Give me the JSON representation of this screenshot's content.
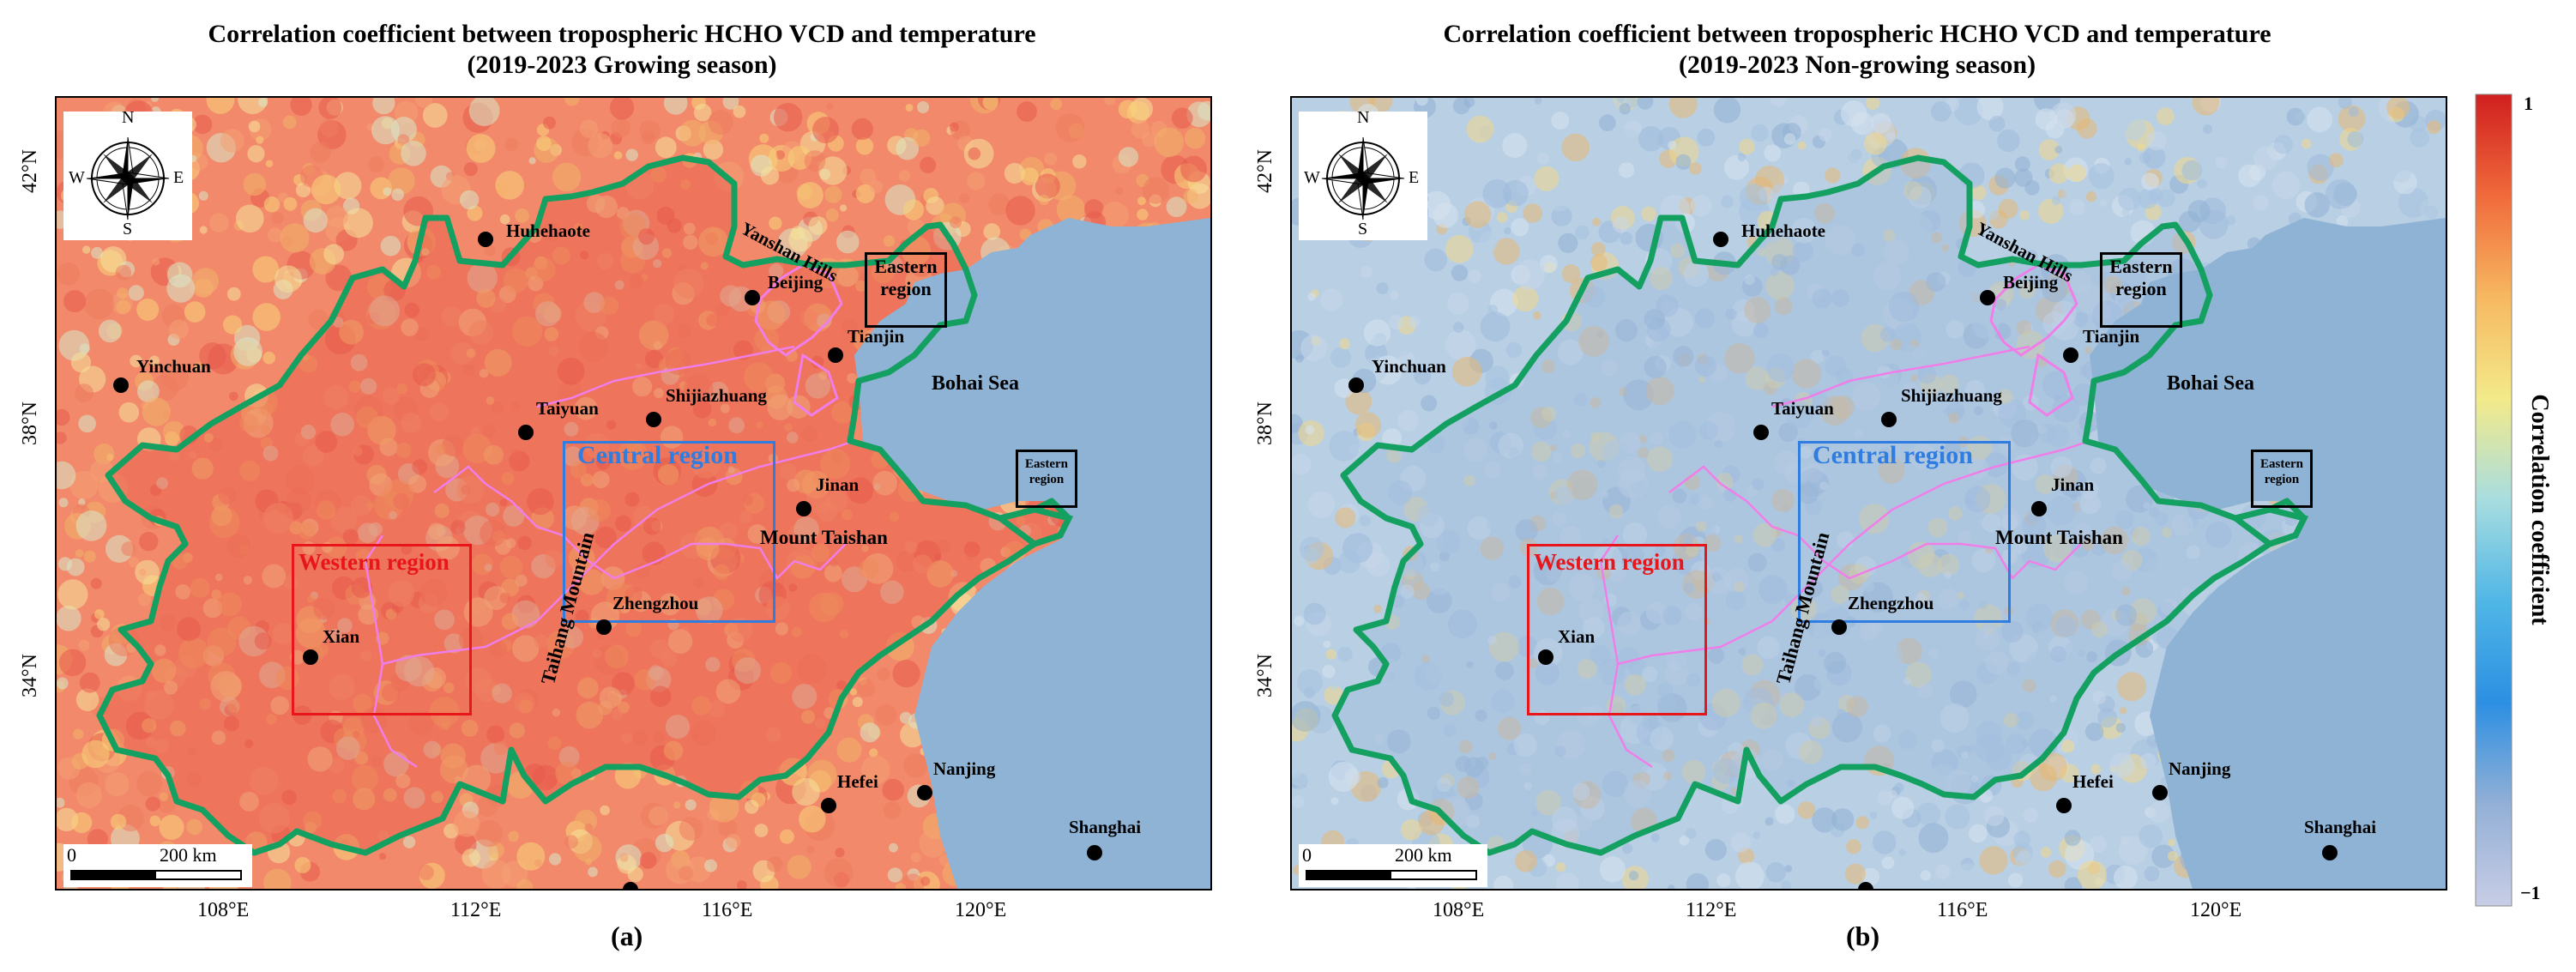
{
  "panels": [
    {
      "title_line1": "Correlation coefficient between tropospheric HCHO VCD and temperature",
      "title_line2": "(2019-2023 Growing season)",
      "label": "(a)",
      "background_color": "#f2896b",
      "region_fill_color": "#e85a4c"
    },
    {
      "title_line1": "Correlation coefficient between tropospheric HCHO VCD and temperature",
      "title_line2": "(2019-2023 Non-growing season)",
      "label": "(b)",
      "background_color": "#b8cfe4",
      "region_fill_color": "#9fbbdc"
    }
  ],
  "axes": {
    "lon_ticks": [
      "108°E",
      "112°E",
      "116°E",
      "120°E"
    ],
    "lat_ticks": [
      "42°N",
      "38°N",
      "34°N"
    ]
  },
  "compass": {
    "north": "N",
    "south": "S",
    "east": "E",
    "west": "W",
    "icon": "compass-rose-icon"
  },
  "scalebar": {
    "zero": "0",
    "distance": "200 km"
  },
  "cities": [
    {
      "key": "huhehaote",
      "name": "Huhehaote"
    },
    {
      "key": "yinchuan",
      "name": "Yinchuan"
    },
    {
      "key": "beijing",
      "name": "Beijing"
    },
    {
      "key": "tianjin",
      "name": "Tianjin"
    },
    {
      "key": "taiyuan",
      "name": "Taiyuan"
    },
    {
      "key": "shijiazhuang",
      "name": "Shijiazhuang"
    },
    {
      "key": "jinan",
      "name": "Jinan"
    },
    {
      "key": "zhengzhou",
      "name": "Zhengzhou"
    },
    {
      "key": "xian",
      "name": "Xian"
    },
    {
      "key": "hefei",
      "name": "Hefei"
    },
    {
      "key": "nanjing",
      "name": "Nanjing"
    },
    {
      "key": "shanghai",
      "name": "Shanghai"
    }
  ],
  "features": {
    "yanshan": "Yanshan Hills",
    "taihang": "Taihang Mountain",
    "mount_taishan": "Mount Taishan",
    "bohai": "Bohai Sea"
  },
  "regions": {
    "central": "Central region",
    "western": "Western region",
    "eastern_line1": "Eastern",
    "eastern_line2": "region"
  },
  "region_colors": {
    "central": "#2f7de0",
    "western": "#e8161b",
    "eastern": "#000000",
    "boundary": "#13a060",
    "mountains": "#f07ee8",
    "sea": "#8fb3d4"
  },
  "colorbar": {
    "title": "Correlation coefficient",
    "max_label": "1",
    "min_label": "−1",
    "range": [
      -1,
      1
    ],
    "colors": [
      "#d01f1f",
      "#f06a3b",
      "#f7b861",
      "#f3ea8a",
      "#a8dde0",
      "#4fb6e6",
      "#2d8fe2",
      "#93b0d6",
      "#c8cde6"
    ]
  }
}
